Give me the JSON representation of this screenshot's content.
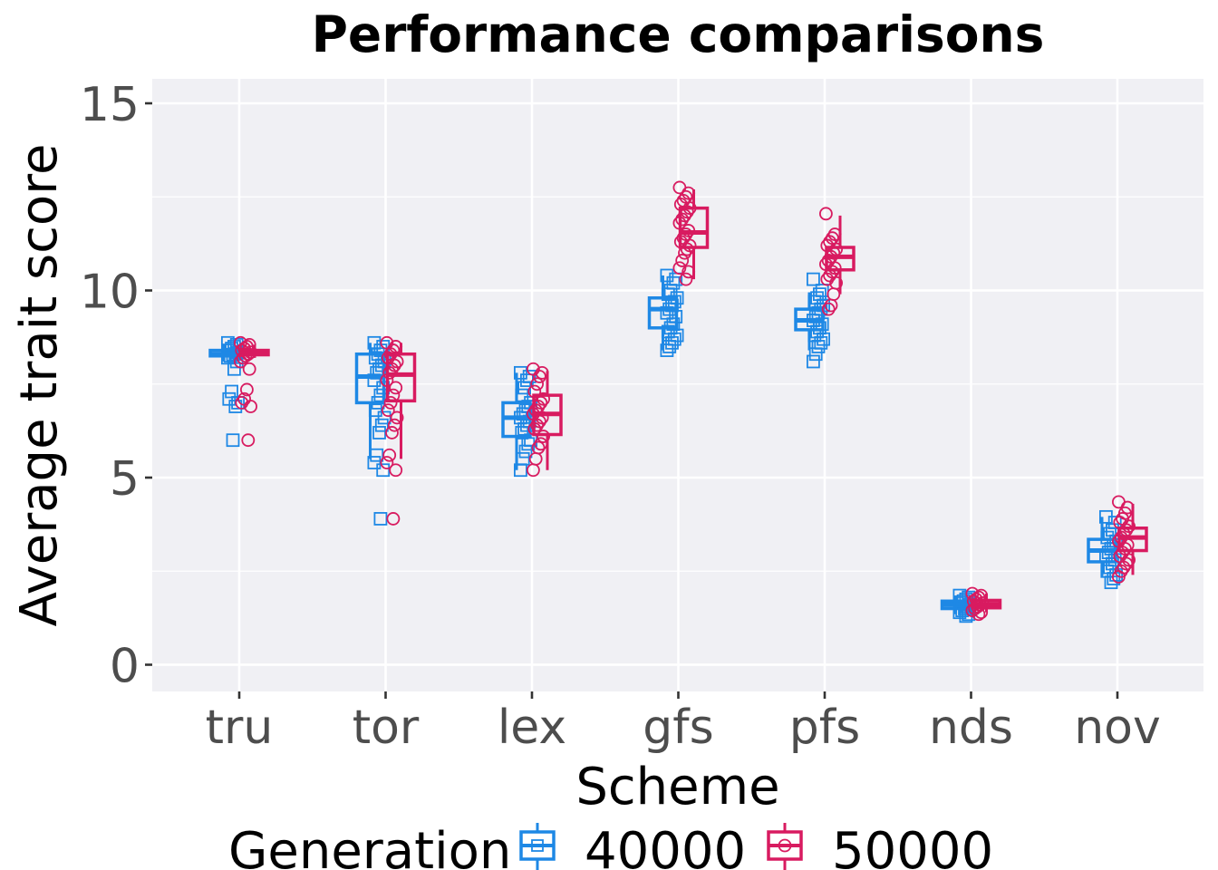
{
  "chart_data": {
    "type": "box",
    "title": "Performance comparisons",
    "xlabel": "Scheme",
    "ylabel": "Average trait score",
    "ylim": [
      -0.7,
      15.8
    ],
    "yticks": [
      0,
      5,
      10,
      15
    ],
    "ytick_labels": [
      "0",
      "5",
      "10",
      "15"
    ],
    "grid": true,
    "legend": {
      "title": "Generation",
      "position": "bottom"
    },
    "categories": [
      "tru",
      "tor",
      "lex",
      "gfs",
      "pfs",
      "nds",
      "nov"
    ],
    "series": [
      {
        "name": "40000",
        "color": "#1e88e5",
        "marker": "square",
        "boxes": [
          {
            "whisker_low": 8.1,
            "q1": 8.25,
            "median": 8.3,
            "q3": 8.4,
            "whisker_high": 8.55
          },
          {
            "whisker_low": 5.5,
            "q1": 7.0,
            "median": 7.7,
            "q3": 8.3,
            "whisker_high": 8.6
          },
          {
            "whisker_low": 5.2,
            "q1": 6.1,
            "median": 6.6,
            "q3": 7.0,
            "whisker_high": 7.8
          },
          {
            "whisker_low": 8.4,
            "q1": 9.0,
            "median": 9.5,
            "q3": 9.8,
            "whisker_high": 10.4
          },
          {
            "whisker_low": 8.4,
            "q1": 8.95,
            "median": 9.2,
            "q3": 9.5,
            "whisker_high": 9.95
          },
          {
            "whisker_low": 1.35,
            "q1": 1.5,
            "median": 1.6,
            "q3": 1.7,
            "whisker_high": 1.85
          },
          {
            "whisker_low": 2.35,
            "q1": 2.75,
            "median": 3.05,
            "q3": 3.35,
            "whisker_high": 3.95
          }
        ],
        "points": [
          [
            8.6,
            8.55,
            8.5,
            8.45,
            8.4,
            8.35,
            8.3,
            8.28,
            8.25,
            8.2,
            8.1,
            7.9,
            7.3,
            7.1,
            7.0,
            6.9,
            6.0
          ],
          [
            8.6,
            8.5,
            8.4,
            8.3,
            8.2,
            8.1,
            8.0,
            7.9,
            7.8,
            7.6,
            7.4,
            7.2,
            7.0,
            6.8,
            6.6,
            6.4,
            6.2,
            5.6,
            5.4,
            5.2,
            3.9
          ],
          [
            7.8,
            7.7,
            7.6,
            7.4,
            7.2,
            7.0,
            6.9,
            6.8,
            6.7,
            6.6,
            6.5,
            6.4,
            6.3,
            6.2,
            6.0,
            5.9,
            5.7,
            5.5,
            5.2
          ],
          [
            10.4,
            10.3,
            10.2,
            10.0,
            9.9,
            9.8,
            9.7,
            9.6,
            9.5,
            9.4,
            9.3,
            9.1,
            9.0,
            8.9,
            8.8,
            8.7,
            8.6,
            8.5,
            8.4
          ],
          [
            10.3,
            10.0,
            9.9,
            9.8,
            9.7,
            9.6,
            9.5,
            9.4,
            9.3,
            9.2,
            9.1,
            9.0,
            8.9,
            8.8,
            8.7,
            8.6,
            8.5,
            8.3,
            8.1
          ],
          [
            1.85,
            1.8,
            1.75,
            1.7,
            1.65,
            1.6,
            1.55,
            1.5,
            1.45,
            1.4,
            1.35,
            1.3
          ],
          [
            3.95,
            3.8,
            3.6,
            3.5,
            3.4,
            3.3,
            3.2,
            3.1,
            3.0,
            2.9,
            2.8,
            2.7,
            2.6,
            2.5,
            2.4,
            2.3,
            2.2
          ]
        ]
      },
      {
        "name": "50000",
        "color": "#d81b60",
        "marker": "circle",
        "boxes": [
          {
            "whisker_low": 8.2,
            "q1": 8.28,
            "median": 8.33,
            "q3": 8.4,
            "whisker_high": 8.55
          },
          {
            "whisker_low": 5.5,
            "q1": 7.05,
            "median": 7.75,
            "q3": 8.3,
            "whisker_high": 8.6
          },
          {
            "whisker_low": 5.2,
            "q1": 6.15,
            "median": 6.7,
            "q3": 7.2,
            "whisker_high": 7.85
          },
          {
            "whisker_low": 10.3,
            "q1": 11.15,
            "median": 11.55,
            "q3": 12.2,
            "whisker_high": 12.7
          },
          {
            "whisker_low": 9.9,
            "q1": 10.55,
            "median": 10.9,
            "q3": 11.15,
            "whisker_high": 12.0
          },
          {
            "whisker_low": 1.4,
            "q1": 1.52,
            "median": 1.62,
            "q3": 1.72,
            "whisker_high": 1.9
          },
          {
            "whisker_low": 2.4,
            "q1": 3.05,
            "median": 3.4,
            "q3": 3.65,
            "whisker_high": 4.3
          }
        ],
        "points": [
          [
            8.6,
            8.55,
            8.5,
            8.45,
            8.4,
            8.35,
            8.3,
            8.25,
            8.2,
            8.1,
            7.9,
            7.35,
            7.1,
            7.0,
            6.9,
            6.0
          ],
          [
            8.6,
            8.5,
            8.4,
            8.3,
            8.2,
            8.1,
            8.0,
            7.9,
            7.8,
            7.6,
            7.4,
            7.2,
            7.0,
            6.8,
            6.6,
            6.4,
            6.2,
            5.6,
            5.4,
            5.2,
            3.9
          ],
          [
            7.9,
            7.8,
            7.7,
            7.5,
            7.3,
            7.1,
            7.0,
            6.9,
            6.8,
            6.7,
            6.6,
            6.5,
            6.4,
            6.3,
            6.1,
            5.9,
            5.8,
            5.5,
            5.2
          ],
          [
            12.75,
            12.6,
            12.5,
            12.4,
            12.3,
            12.2,
            12.1,
            12.0,
            11.9,
            11.8,
            11.6,
            11.5,
            11.4,
            11.3,
            11.2,
            11.1,
            11.0,
            10.8,
            10.6,
            10.5,
            10.3
          ],
          [
            12.05,
            11.5,
            11.4,
            11.3,
            11.2,
            11.1,
            11.0,
            10.9,
            10.8,
            10.7,
            10.6,
            10.5,
            10.4,
            10.3,
            10.2,
            9.9,
            9.6,
            9.5
          ],
          [
            1.9,
            1.85,
            1.8,
            1.75,
            1.7,
            1.65,
            1.6,
            1.55,
            1.5,
            1.45,
            1.4,
            1.35
          ],
          [
            4.35,
            4.2,
            4.05,
            3.9,
            3.8,
            3.7,
            3.6,
            3.5,
            3.4,
            3.3,
            3.2,
            3.1,
            3.0,
            2.9,
            2.8,
            2.7,
            2.6,
            2.5,
            2.35
          ]
        ]
      }
    ]
  }
}
